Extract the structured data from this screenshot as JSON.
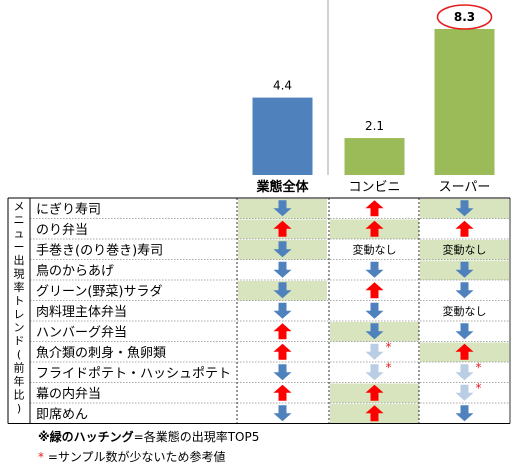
{
  "chart_data": {
    "type": "bar",
    "categories": [
      "業態全体",
      "コンビニ",
      "スーパー"
    ],
    "values": [
      4.4,
      2.1,
      8.3
    ],
    "data_labels": [
      "4.4",
      "2.1",
      "8.3"
    ],
    "bar_colors": [
      "#4f81bd",
      "#9bbb59",
      "#9bbb59"
    ],
    "highlighted_value_index": 2
  },
  "trend_table": {
    "row_axis_label": "メニュー出現率トレンド(前年比)",
    "columns": [
      "業態全体",
      "コンビニ",
      "スーパー"
    ],
    "rows": [
      {
        "label": "にぎり寿司",
        "cells": [
          "down",
          "up",
          "down"
        ],
        "top5": [
          true,
          false,
          true
        ]
      },
      {
        "label": "のり弁当",
        "cells": [
          "up",
          "up",
          "up"
        ],
        "top5": [
          true,
          true,
          false
        ]
      },
      {
        "label": "手巻き(のり巻き)寿司",
        "cells": [
          "down",
          "変動なし",
          "変動なし"
        ],
        "top5": [
          true,
          false,
          true
        ]
      },
      {
        "label": "鳥のからあげ",
        "cells": [
          "down",
          "down",
          "down"
        ],
        "top5": [
          false,
          false,
          true
        ]
      },
      {
        "label": "グリーン(野菜)サラダ",
        "cells": [
          "down",
          "up",
          "down"
        ],
        "top5": [
          true,
          false,
          false
        ]
      },
      {
        "label": "肉料理主体弁当",
        "cells": [
          "down",
          "down",
          "変動なし"
        ],
        "top5": [
          false,
          false,
          false
        ]
      },
      {
        "label": "ハンバーグ弁当",
        "cells": [
          "up",
          "down",
          "down"
        ],
        "top5": [
          false,
          true,
          false
        ]
      },
      {
        "label": "魚介類の刺身・魚卵類",
        "cells": [
          "up",
          "down-light",
          "up"
        ],
        "top5": [
          false,
          false,
          true
        ]
      },
      {
        "label": "フライドポテト・ハッシュポテト",
        "cells": [
          "down",
          "down-light",
          "down-light"
        ],
        "top5": [
          false,
          false,
          false
        ]
      },
      {
        "label": "幕の内弁当",
        "cells": [
          "up",
          "up",
          "down-light"
        ],
        "top5": [
          false,
          true,
          false
        ]
      },
      {
        "label": "即席めん",
        "cells": [
          "down",
          "up",
          "down"
        ],
        "top5": [
          false,
          true,
          false
        ]
      }
    ],
    "low_sample_marks": [
      [
        7,
        1
      ],
      [
        8,
        1
      ],
      [
        8,
        2
      ],
      [
        9,
        2
      ]
    ],
    "low_sample_symbol": "*",
    "changed_none_text": "変動なし",
    "colors": {
      "up": "#ff0000",
      "down": "#4f81bd",
      "down_light": "#b9cde5",
      "top5_fill": "#d7e4bd",
      "highlight_circle": "#e32020"
    }
  },
  "notes": {
    "hatching_bold": "※緑のハッチング",
    "hatching_rest": "=各業態の出現率TOP5",
    "sample_star": "*",
    "sample_rest": " =サンプル数が少ないため参考値"
  }
}
